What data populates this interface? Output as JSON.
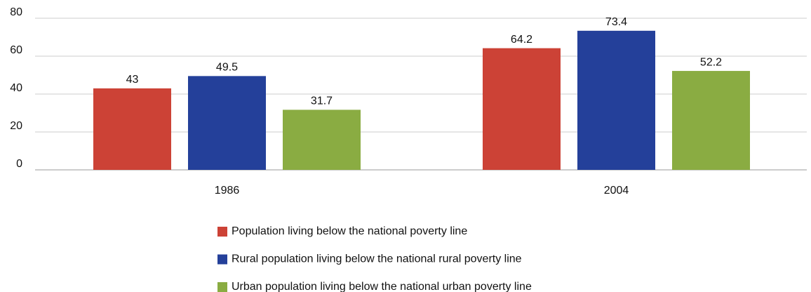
{
  "chart_data": {
    "type": "bar",
    "categories": [
      "1986",
      "2004"
    ],
    "series": [
      {
        "name": "Population living below the national poverty line",
        "color": "#cc4236",
        "values": [
          43,
          64.2
        ]
      },
      {
        "name": "Rural population living below the national rural poverty line",
        "color": "#24409a",
        "values": [
          49.5,
          73.4
        ]
      },
      {
        "name": "Urban population living below the national urban poverty line",
        "color": "#8aac42",
        "values": [
          31.7,
          52.2
        ]
      }
    ],
    "ylim": [
      0,
      80
    ],
    "yticks": [
      0,
      20,
      40,
      60,
      80
    ],
    "grid": true,
    "legend": "bottom"
  }
}
